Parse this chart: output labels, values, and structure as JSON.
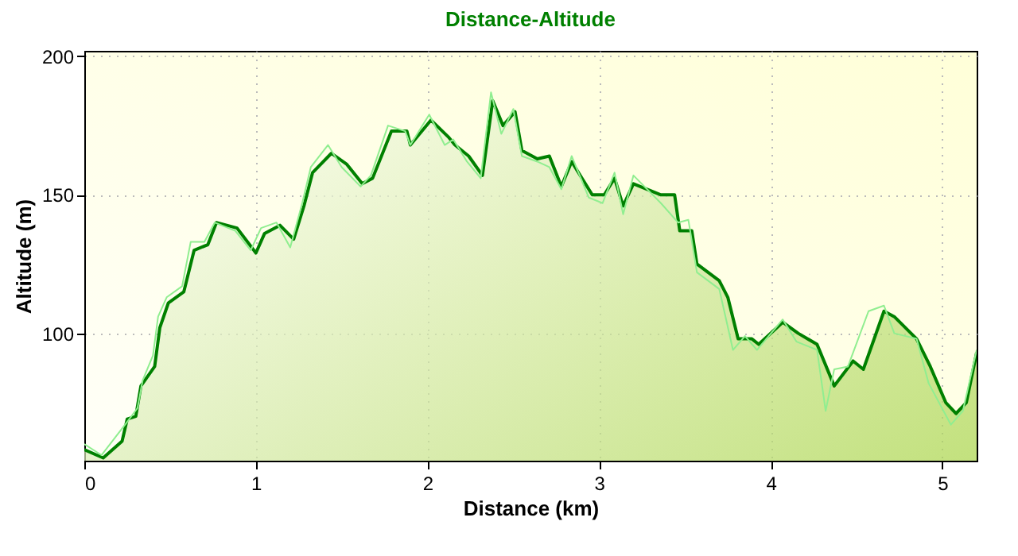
{
  "chart_data": {
    "type": "line",
    "title": "Distance-Altitude",
    "xlabel": "Distance (km)",
    "ylabel": "Altitude (m)",
    "xlim": [
      0,
      5.2
    ],
    "xticks": [
      0,
      1,
      2,
      3,
      4,
      5
    ],
    "ylim": [
      54,
      202
    ],
    "yticks": [
      100,
      150,
      200
    ],
    "grid": true,
    "series": [
      {
        "color": "#90ee90",
        "x": [
          0,
          0.1,
          0.2,
          0.25,
          0.31,
          0.34,
          0.4,
          0.43,
          0.48,
          0.57,
          0.62,
          0.7,
          0.76,
          0.88,
          0.97,
          1.03,
          1.12,
          1.2,
          1.27,
          1.32,
          1.42,
          1.5,
          1.61,
          1.67,
          1.77,
          1.87,
          1.9,
          2.01,
          2.1,
          2.15,
          2.23,
          2.31,
          2.37,
          2.43,
          2.5,
          2.55,
          2.64,
          2.71,
          2.78,
          2.84,
          2.94,
          3.02,
          3.09,
          3.14,
          3.2,
          3.36,
          3.46,
          3.52,
          3.57,
          3.7,
          3.78,
          3.85,
          3.92,
          4.07,
          4.15,
          4.27,
          4.32,
          4.37,
          4.45,
          4.57,
          4.66,
          4.72,
          4.85,
          4.92,
          5.05,
          5.12,
          5.2
        ],
        "values": [
          60,
          56,
          64,
          68,
          73,
          83,
          92,
          106,
          113,
          117,
          133,
          133,
          140,
          137,
          130,
          138,
          140,
          131,
          147,
          160,
          168,
          160,
          153,
          157,
          175,
          173,
          168,
          179,
          168,
          170,
          162,
          156,
          187,
          172,
          181,
          164,
          162,
          160,
          152,
          164,
          149,
          147,
          158,
          143,
          157,
          147,
          140,
          141,
          122,
          116,
          94,
          99,
          94,
          105,
          97,
          94,
          72,
          87,
          88,
          108,
          110,
          100,
          98,
          82,
          67,
          72,
          94
        ]
      },
      {
        "type": "area",
        "color": "#008000",
        "x": [
          0,
          0.11,
          0.22,
          0.25,
          0.3,
          0.33,
          0.41,
          0.44,
          0.49,
          0.58,
          0.64,
          0.72,
          0.77,
          0.89,
          1.0,
          1.05,
          1.14,
          1.22,
          1.28,
          1.33,
          1.44,
          1.53,
          1.62,
          1.68,
          1.79,
          1.88,
          1.9,
          2.02,
          2.12,
          2.16,
          2.24,
          2.32,
          2.38,
          2.44,
          2.51,
          2.55,
          2.64,
          2.71,
          2.78,
          2.84,
          2.96,
          3.03,
          3.09,
          3.14,
          3.2,
          3.36,
          3.44,
          3.47,
          3.54,
          3.57,
          3.7,
          3.75,
          3.81,
          3.89,
          3.93,
          4.07,
          4.16,
          4.27,
          4.37,
          4.48,
          4.54,
          4.66,
          4.72,
          4.85,
          4.93,
          5.02,
          5.08,
          5.14,
          5.2
        ],
        "values": [
          58,
          55,
          61,
          69,
          70,
          81,
          88,
          102,
          111,
          115,
          130,
          132,
          140,
          138,
          129,
          136,
          139,
          134,
          146,
          158,
          165,
          161,
          154,
          156,
          173,
          173,
          168,
          177,
          171,
          168,
          164,
          157,
          184,
          175,
          180,
          166,
          163,
          164,
          153,
          162,
          150,
          150,
          156,
          146,
          154,
          150,
          150,
          137,
          137,
          125,
          119,
          113,
          98,
          98,
          96,
          104,
          100,
          96,
          81,
          90,
          87,
          108,
          106,
          98,
          88,
          75,
          71,
          75,
          93
        ]
      }
    ]
  }
}
